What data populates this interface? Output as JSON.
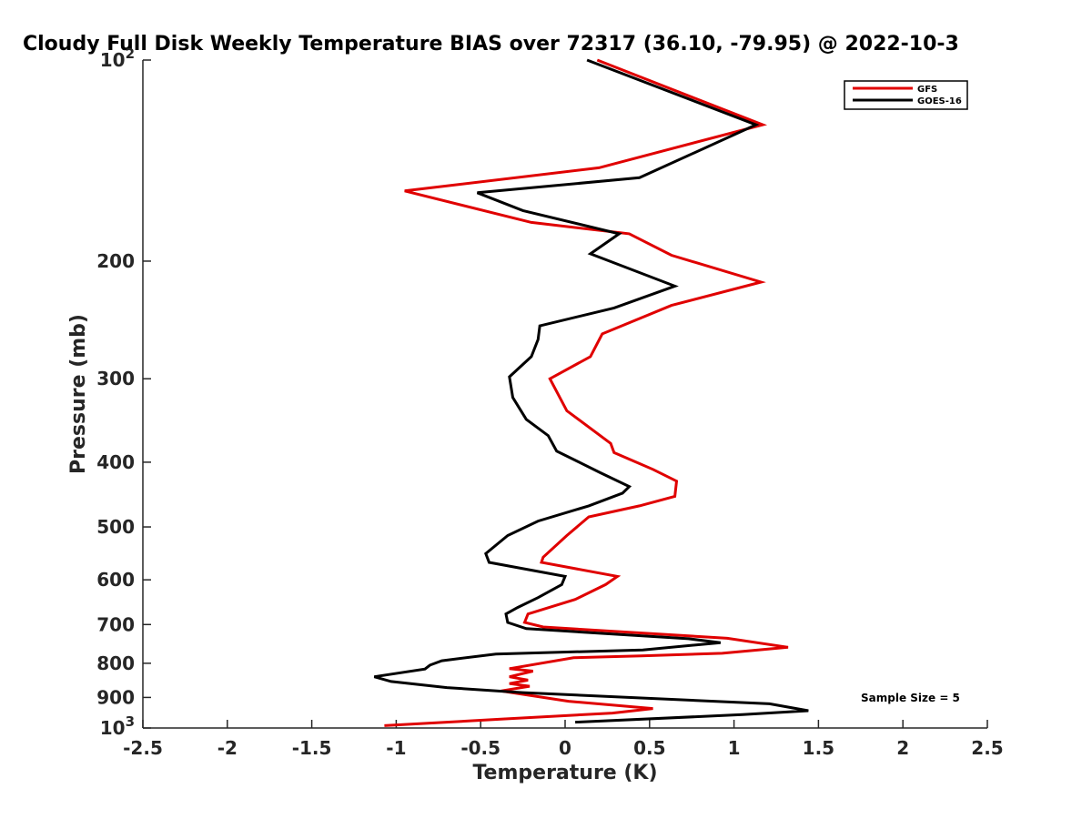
{
  "chart_data": {
    "type": "line",
    "title": "Cloudy Full Disk Weekly Temperature BIAS over 72317 (36.10, -79.95) @ 2022-10-3",
    "xlabel": "Temperature (K)",
    "ylabel": "Pressure (mb)",
    "xlim": [
      -2.5,
      2.5
    ],
    "ylim": [
      100,
      1000
    ],
    "y_scale": "log",
    "y_reversed": true,
    "grid": false,
    "legend_position": "top-right",
    "x_ticks": [
      -2.5,
      -2,
      -1.5,
      -1,
      -0.5,
      0,
      0.5,
      1,
      1.5,
      2,
      2.5
    ],
    "x_tick_labels": [
      "-2.5",
      "-2",
      "-1.5",
      "-1",
      "-0.5",
      "0",
      "0.5",
      "1",
      "1.5",
      "2",
      "2.5"
    ],
    "y_ticks": [
      100,
      200,
      300,
      400,
      500,
      600,
      700,
      800,
      900,
      1000
    ],
    "y_tick_labels": [
      {
        "base": "10",
        "exp": "2"
      },
      {
        "base": "200",
        "exp": ""
      },
      {
        "base": "300",
        "exp": ""
      },
      {
        "base": "400",
        "exp": ""
      },
      {
        "base": "500",
        "exp": ""
      },
      {
        "base": "600",
        "exp": ""
      },
      {
        "base": "700",
        "exp": ""
      },
      {
        "base": "800",
        "exp": ""
      },
      {
        "base": "900",
        "exp": ""
      },
      {
        "base": "10",
        "exp": "3"
      }
    ],
    "annotation": "Sample Size = 5",
    "series": [
      {
        "name": "GFS",
        "color": "#e00000",
        "points": [
          [
            0.19,
            100
          ],
          [
            1.17,
            125
          ],
          [
            0.2,
            145
          ],
          [
            -0.95,
            157
          ],
          [
            -0.2,
            175
          ],
          [
            0.38,
            182
          ],
          [
            0.63,
            196
          ],
          [
            1.16,
            215
          ],
          [
            0.63,
            233
          ],
          [
            0.22,
            257
          ],
          [
            0.15,
            278
          ],
          [
            -0.09,
            300
          ],
          [
            0.01,
            335
          ],
          [
            0.27,
            375
          ],
          [
            0.29,
            387
          ],
          [
            0.52,
            410
          ],
          [
            0.66,
            427
          ],
          [
            0.65,
            450
          ],
          [
            0.44,
            465
          ],
          [
            0.14,
            483
          ],
          [
            0.01,
            515
          ],
          [
            -0.13,
            555
          ],
          [
            -0.14,
            565
          ],
          [
            0.31,
            593
          ],
          [
            0.24,
            610
          ],
          [
            0.06,
            642
          ],
          [
            -0.22,
            675
          ],
          [
            -0.24,
            695
          ],
          [
            -0.13,
            706
          ],
          [
            0.96,
            734
          ],
          [
            1.32,
            757
          ],
          [
            0.93,
            773
          ],
          [
            0.45,
            780
          ],
          [
            0.05,
            785
          ],
          [
            -0.33,
            815
          ],
          [
            -0.19,
            822
          ],
          [
            -0.33,
            838
          ],
          [
            -0.22,
            848
          ],
          [
            -0.33,
            858
          ],
          [
            -0.21,
            866
          ],
          [
            -0.38,
            880
          ],
          [
            0.02,
            912
          ],
          [
            0.52,
            935
          ],
          [
            0.28,
            950
          ],
          [
            -0.38,
            970
          ],
          [
            -1.07,
            992
          ]
        ]
      },
      {
        "name": "GOES-16",
        "color": "#000000",
        "points": [
          [
            0.13,
            100
          ],
          [
            1.13,
            125
          ],
          [
            0.44,
            150
          ],
          [
            -0.52,
            158
          ],
          [
            -0.25,
            168
          ],
          [
            0.32,
            182
          ],
          [
            0.15,
            195
          ],
          [
            0.65,
            218
          ],
          [
            0.29,
            235
          ],
          [
            -0.15,
            250
          ],
          [
            -0.16,
            262
          ],
          [
            -0.2,
            278
          ],
          [
            -0.33,
            298
          ],
          [
            -0.31,
            320
          ],
          [
            -0.23,
            345
          ],
          [
            -0.1,
            365
          ],
          [
            -0.05,
            385
          ],
          [
            0.21,
            415
          ],
          [
            0.38,
            435
          ],
          [
            0.34,
            445
          ],
          [
            0.14,
            465
          ],
          [
            -0.16,
            490
          ],
          [
            -0.34,
            515
          ],
          [
            -0.47,
            548
          ],
          [
            -0.45,
            565
          ],
          [
            0.0,
            593
          ],
          [
            -0.02,
            610
          ],
          [
            -0.16,
            638
          ],
          [
            -0.28,
            660
          ],
          [
            -0.35,
            675
          ],
          [
            -0.34,
            695
          ],
          [
            -0.23,
            710
          ],
          [
            0.73,
            735
          ],
          [
            0.92,
            745
          ],
          [
            0.46,
            764
          ],
          [
            -0.41,
            775
          ],
          [
            -0.73,
            793
          ],
          [
            -0.8,
            805
          ],
          [
            -0.83,
            816
          ],
          [
            -1.13,
            838
          ],
          [
            -1.03,
            852
          ],
          [
            -0.7,
            870
          ],
          [
            -0.25,
            885
          ],
          [
            1.21,
            920
          ],
          [
            1.44,
            942
          ],
          [
            1.05,
            955
          ],
          [
            0.06,
            980
          ]
        ]
      }
    ]
  }
}
